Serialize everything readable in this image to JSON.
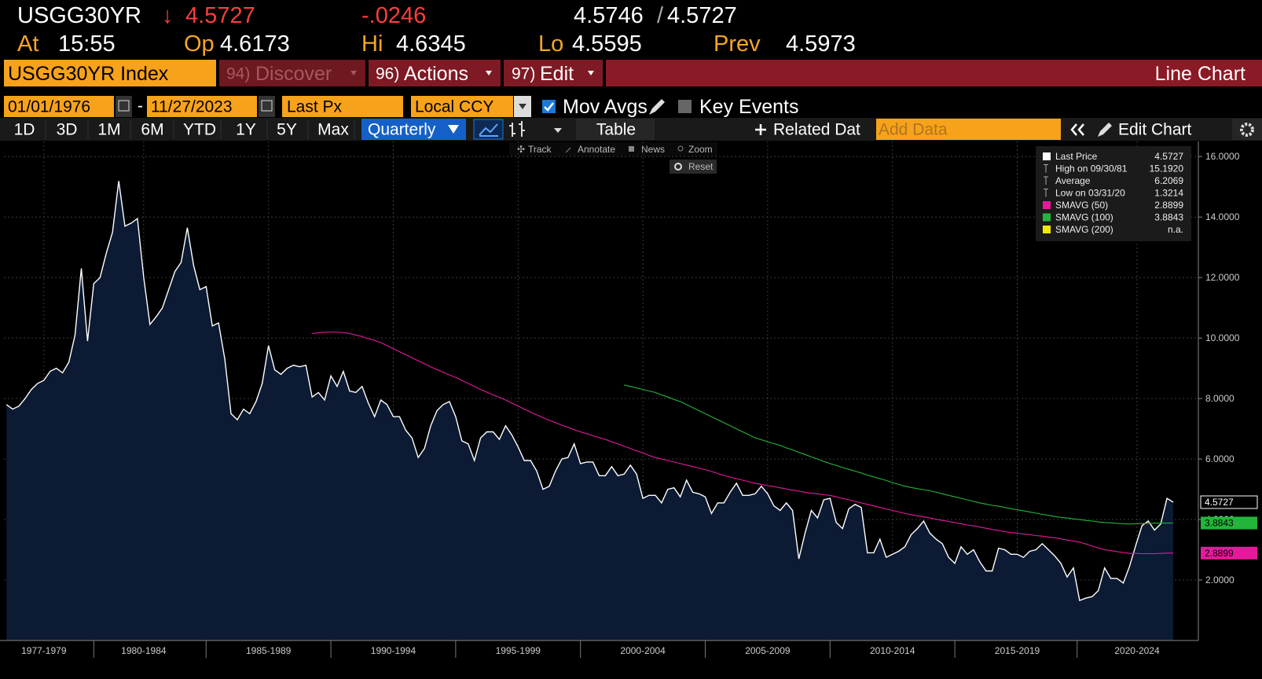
{
  "quote": {
    "ticker": "USGG30YR",
    "direction": "↓",
    "last": "4.5727",
    "change": "-.0246",
    "bid": "4.5746",
    "bid_ask_separator": "/",
    "ask": "4.5727",
    "time_label": "At",
    "time": "15:55",
    "open_label": "Op",
    "open": "4.6173",
    "high_label": "Hi",
    "high": "4.6345",
    "low_label": "Lo",
    "low": "4.5595",
    "prev_label": "Prev",
    "prev": "4.5973"
  },
  "menu": {
    "security": "USGG30YR Index",
    "items": [
      {
        "num": "94)",
        "label": "Discover"
      },
      {
        "num": "96)",
        "label": "Actions"
      },
      {
        "num": "97)",
        "label": "Edit"
      }
    ],
    "view": "Line Chart"
  },
  "controls": {
    "start_date": "01/01/1976",
    "date_separator": "-",
    "end_date": "11/27/2023",
    "field": "Last Px",
    "currency": "Local CCY",
    "options": [
      "Mov Avgs",
      "Key Events"
    ]
  },
  "toolbar": {
    "ranges": [
      "1D",
      "3D",
      "1M",
      "6M",
      "YTD",
      "1Y",
      "5Y",
      "Max"
    ],
    "frequency": "Quarterly",
    "table": "Table",
    "related": "Related Dat",
    "add_data_placeholder": "Add Data",
    "edit_chart": "Edit Chart"
  },
  "chart_tools": [
    "Track",
    "Annotate",
    "News",
    "Zoom",
    "Reset"
  ],
  "chart_data": {
    "type": "line",
    "x": [
      1977,
      1977.25,
      1977.5,
      1977.75,
      1978,
      1978.25,
      1978.5,
      1978.75,
      1979,
      1979.25,
      1979.5,
      1979.75,
      1980,
      1980.25,
      1980.5,
      1980.75,
      1981,
      1981.25,
      1981.5,
      1981.75,
      1982,
      1982.25,
      1982.5,
      1982.75,
      1983,
      1983.25,
      1983.5,
      1983.75,
      1984,
      1984.25,
      1984.5,
      1984.75,
      1985,
      1985.25,
      1985.5,
      1985.75,
      1986,
      1986.25,
      1986.5,
      1986.75,
      1987,
      1987.25,
      1987.5,
      1987.75,
      1988,
      1988.25,
      1988.5,
      1988.75,
      1989,
      1989.25,
      1989.5,
      1989.75,
      1990,
      1990.25,
      1990.5,
      1990.75,
      1991,
      1991.25,
      1991.5,
      1991.75,
      1992,
      1992.25,
      1992.5,
      1992.75,
      1993,
      1993.25,
      1993.5,
      1993.75,
      1994,
      1994.25,
      1994.5,
      1994.75,
      1995,
      1995.25,
      1995.5,
      1995.75,
      1996,
      1996.25,
      1996.5,
      1996.75,
      1997,
      1997.25,
      1997.5,
      1997.75,
      1998,
      1998.25,
      1998.5,
      1998.75,
      1999,
      1999.25,
      1999.5,
      1999.75,
      2000,
      2000.25,
      2000.5,
      2000.75,
      2001,
      2001.25,
      2001.5,
      2001.75,
      2002,
      2002.25,
      2002.5,
      2002.75,
      2003,
      2003.25,
      2003.5,
      2003.75,
      2004,
      2004.25,
      2004.5,
      2004.75,
      2005,
      2005.25,
      2005.5,
      2005.75,
      2006,
      2006.25,
      2006.5,
      2006.75,
      2007,
      2007.25,
      2007.5,
      2007.75,
      2008,
      2008.25,
      2008.5,
      2008.75,
      2009,
      2009.25,
      2009.5,
      2009.75,
      2010,
      2010.25,
      2010.5,
      2010.75,
      2011,
      2011.25,
      2011.5,
      2011.75,
      2012,
      2012.25,
      2012.5,
      2012.75,
      2013,
      2013.25,
      2013.5,
      2013.75,
      2014,
      2014.25,
      2014.5,
      2014.75,
      2015,
      2015.25,
      2015.5,
      2015.75,
      2016,
      2016.25,
      2016.5,
      2016.75,
      2017,
      2017.25,
      2017.5,
      2017.75,
      2018,
      2018.25,
      2018.5,
      2018.75,
      2019,
      2019.25,
      2019.5,
      2019.75,
      2020,
      2020.25,
      2020.5,
      2020.75,
      2021,
      2021.25,
      2021.5,
      2021.75,
      2022,
      2022.25,
      2022.5,
      2022.75,
      2023,
      2023.25,
      2023.5,
      2023.75
    ],
    "series": [
      {
        "name": "Last Price",
        "color": "#ffffff",
        "fill": "#0c1a33",
        "values": [
          7.8,
          7.65,
          7.75,
          8.0,
          8.3,
          8.5,
          8.6,
          8.9,
          9.0,
          8.85,
          9.2,
          10.1,
          12.3,
          9.9,
          11.8,
          12.0,
          12.8,
          13.5,
          15.192,
          13.7,
          13.8,
          13.95,
          12.0,
          10.45,
          10.7,
          11.0,
          11.6,
          12.2,
          12.5,
          13.65,
          12.4,
          11.6,
          11.7,
          10.4,
          10.5,
          9.3,
          7.5,
          7.3,
          7.65,
          7.5,
          7.9,
          8.5,
          9.75,
          8.95,
          8.8,
          9.0,
          9.1,
          9.05,
          9.1,
          8.05,
          8.2,
          7.95,
          8.75,
          8.4,
          8.9,
          8.25,
          8.2,
          8.4,
          7.85,
          7.4,
          7.95,
          7.8,
          7.4,
          7.4,
          6.95,
          6.7,
          6.05,
          6.35,
          7.1,
          7.6,
          7.8,
          7.9,
          7.4,
          6.6,
          6.5,
          5.95,
          6.7,
          6.9,
          6.9,
          6.65,
          7.1,
          6.8,
          6.4,
          5.95,
          5.95,
          5.6,
          5.0,
          5.1,
          5.6,
          6.0,
          6.05,
          6.5,
          5.85,
          5.9,
          5.9,
          5.45,
          5.45,
          5.75,
          5.45,
          5.5,
          5.8,
          5.5,
          4.7,
          4.8,
          4.8,
          4.55,
          5.0,
          5.05,
          4.75,
          5.3,
          4.9,
          4.85,
          4.75,
          4.2,
          4.55,
          4.55,
          4.9,
          5.2,
          4.8,
          4.8,
          4.85,
          5.1,
          4.85,
          4.45,
          4.3,
          4.55,
          4.3,
          2.7,
          3.55,
          4.3,
          4.05,
          4.65,
          4.7,
          3.9,
          3.7,
          4.35,
          4.5,
          4.4,
          2.9,
          2.9,
          3.35,
          2.75,
          2.85,
          2.95,
          3.1,
          3.5,
          3.7,
          3.95,
          3.55,
          3.35,
          3.2,
          2.75,
          2.55,
          3.1,
          2.85,
          3.0,
          2.6,
          2.3,
          2.3,
          3.05,
          3.0,
          2.85,
          2.85,
          2.75,
          2.95,
          3.0,
          3.2,
          3.0,
          2.8,
          2.55,
          2.1,
          2.4,
          1.3214,
          1.4,
          1.45,
          1.65,
          2.4,
          2.05,
          2.05,
          1.9,
          2.45,
          3.15,
          3.8,
          3.95,
          3.65,
          3.85,
          4.7,
          4.5727
        ]
      },
      {
        "name": "SMAVG (50)",
        "color": "#e8189c",
        "values": [
          null,
          null,
          null,
          null,
          null,
          null,
          null,
          null,
          null,
          null,
          null,
          null,
          null,
          null,
          null,
          null,
          null,
          null,
          null,
          null,
          null,
          null,
          null,
          null,
          null,
          null,
          null,
          null,
          null,
          null,
          null,
          null,
          null,
          null,
          null,
          null,
          null,
          null,
          null,
          null,
          null,
          null,
          null,
          null,
          null,
          null,
          null,
          null,
          null,
          10.15,
          10.17,
          10.19,
          10.2,
          10.2,
          10.18,
          10.15,
          10.1,
          10.05,
          9.98,
          9.92,
          9.85,
          9.75,
          9.65,
          9.55,
          9.45,
          9.35,
          9.25,
          9.15,
          9.05,
          8.96,
          8.87,
          8.78,
          8.7,
          8.6,
          8.5,
          8.4,
          8.3,
          8.21,
          8.12,
          8.04,
          7.95,
          7.85,
          7.75,
          7.65,
          7.55,
          7.46,
          7.37,
          7.28,
          7.2,
          7.12,
          7.05,
          6.97,
          6.9,
          6.84,
          6.77,
          6.71,
          6.65,
          6.57,
          6.5,
          6.42,
          6.35,
          6.27,
          6.2,
          6.12,
          6.05,
          6.0,
          5.95,
          5.9,
          5.85,
          5.8,
          5.75,
          5.7,
          5.65,
          5.59,
          5.52,
          5.46,
          5.4,
          5.35,
          5.3,
          5.25,
          5.2,
          5.16,
          5.12,
          5.09,
          5.05,
          5.01,
          4.97,
          4.94,
          4.9,
          4.87,
          4.85,
          4.82,
          4.8,
          4.75,
          4.7,
          4.65,
          4.6,
          4.55,
          4.5,
          4.45,
          4.4,
          4.35,
          4.3,
          4.25,
          4.2,
          4.16,
          4.12,
          4.09,
          4.05,
          4.01,
          3.97,
          3.94,
          3.9,
          3.86,
          3.82,
          3.79,
          3.75,
          3.71,
          3.67,
          3.64,
          3.6,
          3.57,
          3.55,
          3.52,
          3.5,
          3.47,
          3.45,
          3.42,
          3.4,
          3.36,
          3.32,
          3.29,
          3.25,
          3.19,
          3.12,
          3.06,
          3.0,
          2.97,
          2.94,
          2.91,
          2.88,
          2.88,
          2.87,
          2.87,
          2.87,
          2.88,
          2.89,
          2.8899
        ]
      },
      {
        "name": "SMAVG (100)",
        "color": "#22b53a",
        "values": [
          null,
          null,
          null,
          null,
          null,
          null,
          null,
          null,
          null,
          null,
          null,
          null,
          null,
          null,
          null,
          null,
          null,
          null,
          null,
          null,
          null,
          null,
          null,
          null,
          null,
          null,
          null,
          null,
          null,
          null,
          null,
          null,
          null,
          null,
          null,
          null,
          null,
          null,
          null,
          null,
          null,
          null,
          null,
          null,
          null,
          null,
          null,
          null,
          null,
          null,
          null,
          null,
          null,
          null,
          null,
          null,
          null,
          null,
          null,
          null,
          null,
          null,
          null,
          null,
          null,
          null,
          null,
          null,
          null,
          null,
          null,
          null,
          null,
          null,
          null,
          null,
          null,
          null,
          null,
          null,
          null,
          null,
          null,
          null,
          null,
          null,
          null,
          null,
          null,
          null,
          null,
          null,
          null,
          null,
          null,
          null,
          null,
          null,
          null,
          8.45,
          8.4,
          8.35,
          8.3,
          8.25,
          8.2,
          8.12,
          8.05,
          7.97,
          7.9,
          7.8,
          7.7,
          7.6,
          7.5,
          7.4,
          7.3,
          7.2,
          7.1,
          7.0,
          6.9,
          6.8,
          6.7,
          6.64,
          6.57,
          6.51,
          6.45,
          6.37,
          6.3,
          6.22,
          6.15,
          6.07,
          6.0,
          5.92,
          5.85,
          5.79,
          5.72,
          5.66,
          5.6,
          5.54,
          5.47,
          5.41,
          5.35,
          5.29,
          5.22,
          5.16,
          5.1,
          5.06,
          5.02,
          4.99,
          4.95,
          4.9,
          4.85,
          4.8,
          4.75,
          4.7,
          4.65,
          4.6,
          4.55,
          4.51,
          4.47,
          4.44,
          4.4,
          4.36,
          4.32,
          4.29,
          4.25,
          4.21,
          4.17,
          4.14,
          4.1,
          4.07,
          4.05,
          4.02,
          4.0,
          3.97,
          3.95,
          3.92,
          3.9,
          3.89,
          3.87,
          3.86,
          3.85,
          3.86,
          3.87,
          3.87,
          3.88,
          3.88,
          3.88,
          3.8843
        ]
      }
    ],
    "stats": [
      {
        "label": "High on 09/30/81",
        "value": "15.1920"
      },
      {
        "label": "Average",
        "value": "6.2069"
      },
      {
        "label": "Low on 03/31/20",
        "value": "1.3214"
      }
    ],
    "unavailable_series": [
      {
        "name": "SMAVG (200)",
        "color": "#f5e800",
        "value": "n.a."
      }
    ],
    "xlim": [
      1976.9,
      2024.6
    ],
    "xticks": [
      {
        "value": 1978.5,
        "label": "1977-1979"
      },
      {
        "value": 1982.5,
        "label": "1980-1984"
      },
      {
        "value": 1987.5,
        "label": "1985-1989"
      },
      {
        "value": 1992.5,
        "label": "1990-1994"
      },
      {
        "value": 1997.5,
        "label": "1995-1999"
      },
      {
        "value": 2002.5,
        "label": "2000-2004"
      },
      {
        "value": 2007.5,
        "label": "2005-2009"
      },
      {
        "value": 2012.5,
        "label": "2010-2014"
      },
      {
        "value": 2017.5,
        "label": "2015-2019"
      },
      {
        "value": 2022.3,
        "label": "2020-2024"
      }
    ],
    "ylim": [
      0,
      16.5
    ],
    "yticks": [
      {
        "value": 2,
        "label": "2.0000"
      },
      {
        "value": 4,
        "label": "4.0000"
      },
      {
        "value": 6,
        "label": "6.0000"
      },
      {
        "value": 8,
        "label": "8.0000"
      },
      {
        "value": 10,
        "label": "10.0000"
      },
      {
        "value": 12,
        "label": "12.0000"
      },
      {
        "value": 14,
        "label": "14.0000"
      },
      {
        "value": 16,
        "label": "16.0000"
      }
    ],
    "grid": true
  }
}
